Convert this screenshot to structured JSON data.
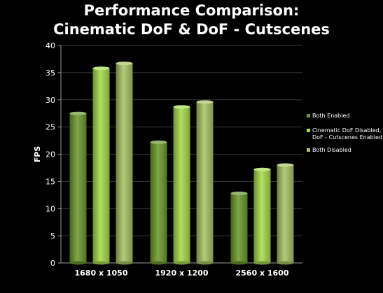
{
  "title_line1": "Performance Comparison:",
  "title_line2": "Cinematic DoF & DoF - Cutscenes",
  "chart_data": {
    "type": "bar",
    "title": "Performance Comparison: Cinematic DoF & DoF - Cutscenes",
    "xlabel": "",
    "ylabel": "FPS",
    "ylim": [
      0,
      40
    ],
    "yticks": [
      0,
      5,
      10,
      15,
      20,
      25,
      30,
      35,
      40
    ],
    "grid": true,
    "legend_position": "right",
    "categories": [
      "1680 x 1050",
      "1920 x 1200",
      "2560 x 1600"
    ],
    "series": [
      {
        "name": "Both Enabled",
        "values": [
          27.5,
          22.2,
          12.8
        ],
        "color": "#6f9a2e"
      },
      {
        "name": "Cinematic DoF Disabled, DoF - Cutscenes Enabled",
        "legend_lines": [
          "Cinematic DoF Disabled,",
          "DoF - Cutscenes Enabled"
        ],
        "values": [
          35.8,
          28.7,
          17.2
        ],
        "color": "#a8dc4c"
      },
      {
        "name": "Both Disabled",
        "values": [
          36.7,
          29.6,
          18.0
        ],
        "color": "#a9c466"
      }
    ]
  }
}
